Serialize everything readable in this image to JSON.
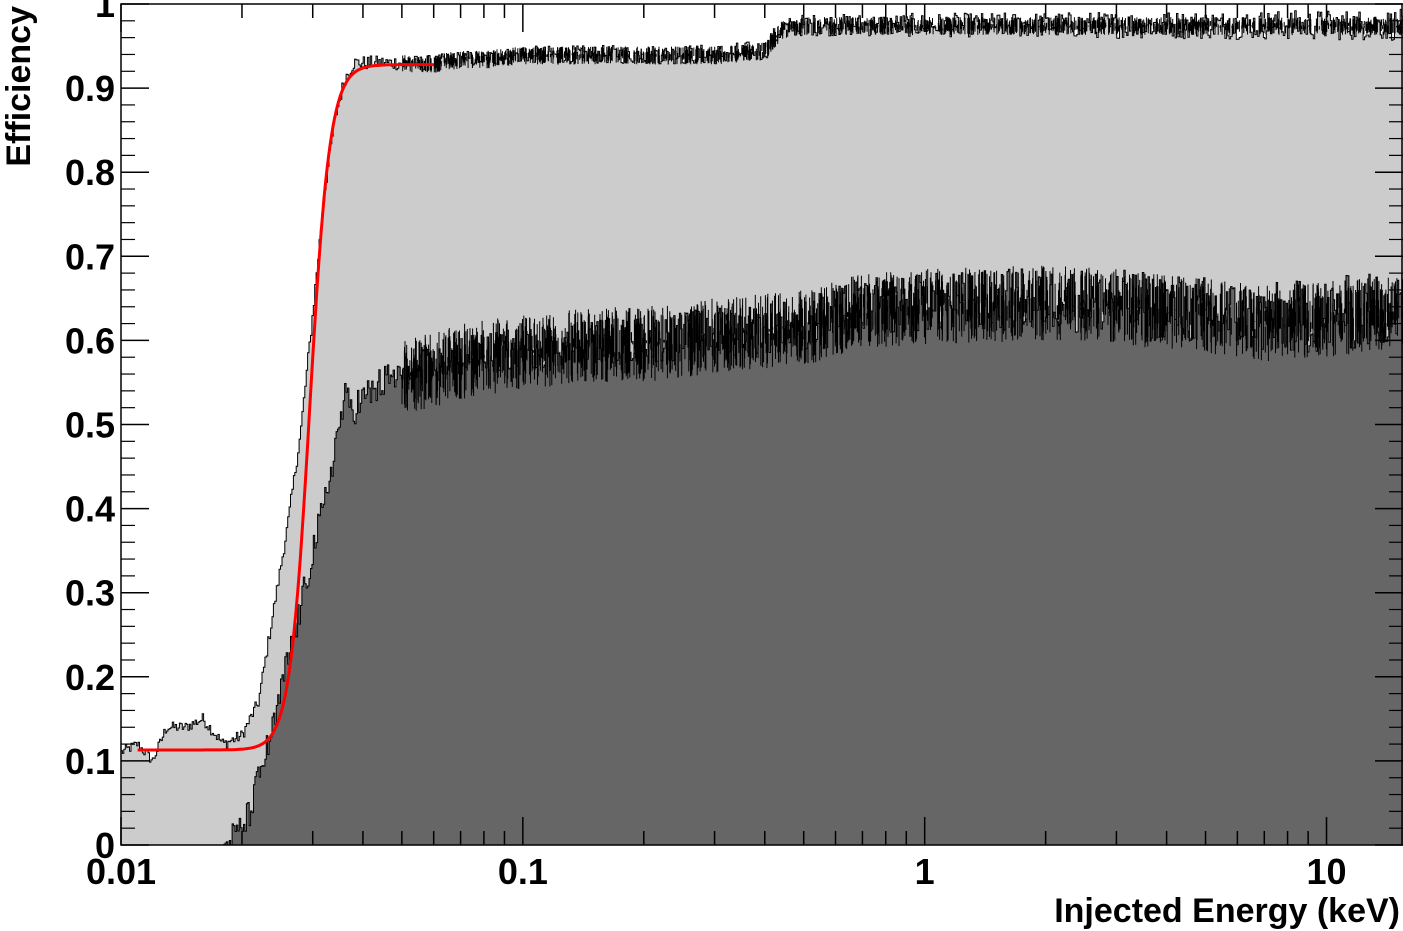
{
  "chart_data": {
    "type": "histogram",
    "xlabel": "Injected Energy (keV)",
    "ylabel": "Efficiency",
    "xscale": "log",
    "xlim": [
      0.01,
      15.5
    ],
    "ylim": [
      0,
      1
    ],
    "grid": false,
    "legend": "none",
    "x_tick_labels": [
      "0.01",
      "0.1",
      "1",
      "10"
    ],
    "x_tick_values": [
      0.01,
      0.1,
      1,
      10
    ],
    "y_tick_labels": [
      "0",
      "0.1",
      "0.2",
      "0.3",
      "0.4",
      "0.5",
      "0.6",
      "0.7",
      "0.8",
      "0.9",
      "1"
    ],
    "y_tick_values": [
      0,
      0.1,
      0.2,
      0.3,
      0.4,
      0.5,
      0.6,
      0.7,
      0.8,
      0.9,
      1
    ],
    "series": [
      {
        "kind": "filled-histogram",
        "color": "#cccccc",
        "x": [
          0.01,
          0.011,
          0.012,
          0.013,
          0.0145,
          0.016,
          0.018,
          0.02,
          0.022,
          0.024,
          0.026,
          0.028,
          0.03,
          0.032,
          0.034,
          0.036,
          0.038,
          0.04,
          0.045,
          0.05,
          0.06,
          0.07,
          0.08,
          0.1,
          0.15,
          0.2,
          0.3,
          0.4,
          0.44,
          0.5,
          0.7,
          1.0,
          2.0,
          3.0,
          5.0,
          7.0,
          10.0,
          15.5
        ],
        "y": [
          0.11,
          0.12,
          0.1,
          0.14,
          0.14,
          0.15,
          0.12,
          0.13,
          0.17,
          0.28,
          0.38,
          0.49,
          0.63,
          0.77,
          0.86,
          0.91,
          0.93,
          0.93,
          0.93,
          0.93,
          0.93,
          0.935,
          0.935,
          0.94,
          0.94,
          0.94,
          0.94,
          0.945,
          0.97,
          0.975,
          0.975,
          0.975,
          0.975,
          0.975,
          0.975,
          0.975,
          0.975,
          0.975
        ]
      },
      {
        "kind": "filled-histogram",
        "color": "#666666",
        "x": [
          0.01,
          0.018,
          0.019,
          0.02,
          0.021,
          0.022,
          0.024,
          0.026,
          0.028,
          0.03,
          0.032,
          0.034,
          0.036,
          0.038,
          0.04,
          0.045,
          0.05,
          0.06,
          0.07,
          0.08,
          0.1,
          0.15,
          0.2,
          0.3,
          0.5,
          0.7,
          1.0,
          2.0,
          3.0,
          5.0,
          7.0,
          10.0,
          15.5
        ],
        "y": [
          0.0,
          0.0,
          0.01,
          0.02,
          0.04,
          0.08,
          0.14,
          0.22,
          0.28,
          0.35,
          0.4,
          0.47,
          0.53,
          0.52,
          0.53,
          0.55,
          0.56,
          0.57,
          0.58,
          0.585,
          0.59,
          0.6,
          0.6,
          0.61,
          0.62,
          0.64,
          0.645,
          0.65,
          0.645,
          0.635,
          0.625,
          0.63,
          0.64
        ]
      },
      {
        "kind": "fit-curve",
        "color": "#ff0000",
        "function": "sigmoid",
        "baseline": 0.113,
        "plateau": 0.928,
        "midpoint": 0.0295,
        "x_range": [
          0.011,
          0.06
        ]
      }
    ]
  }
}
